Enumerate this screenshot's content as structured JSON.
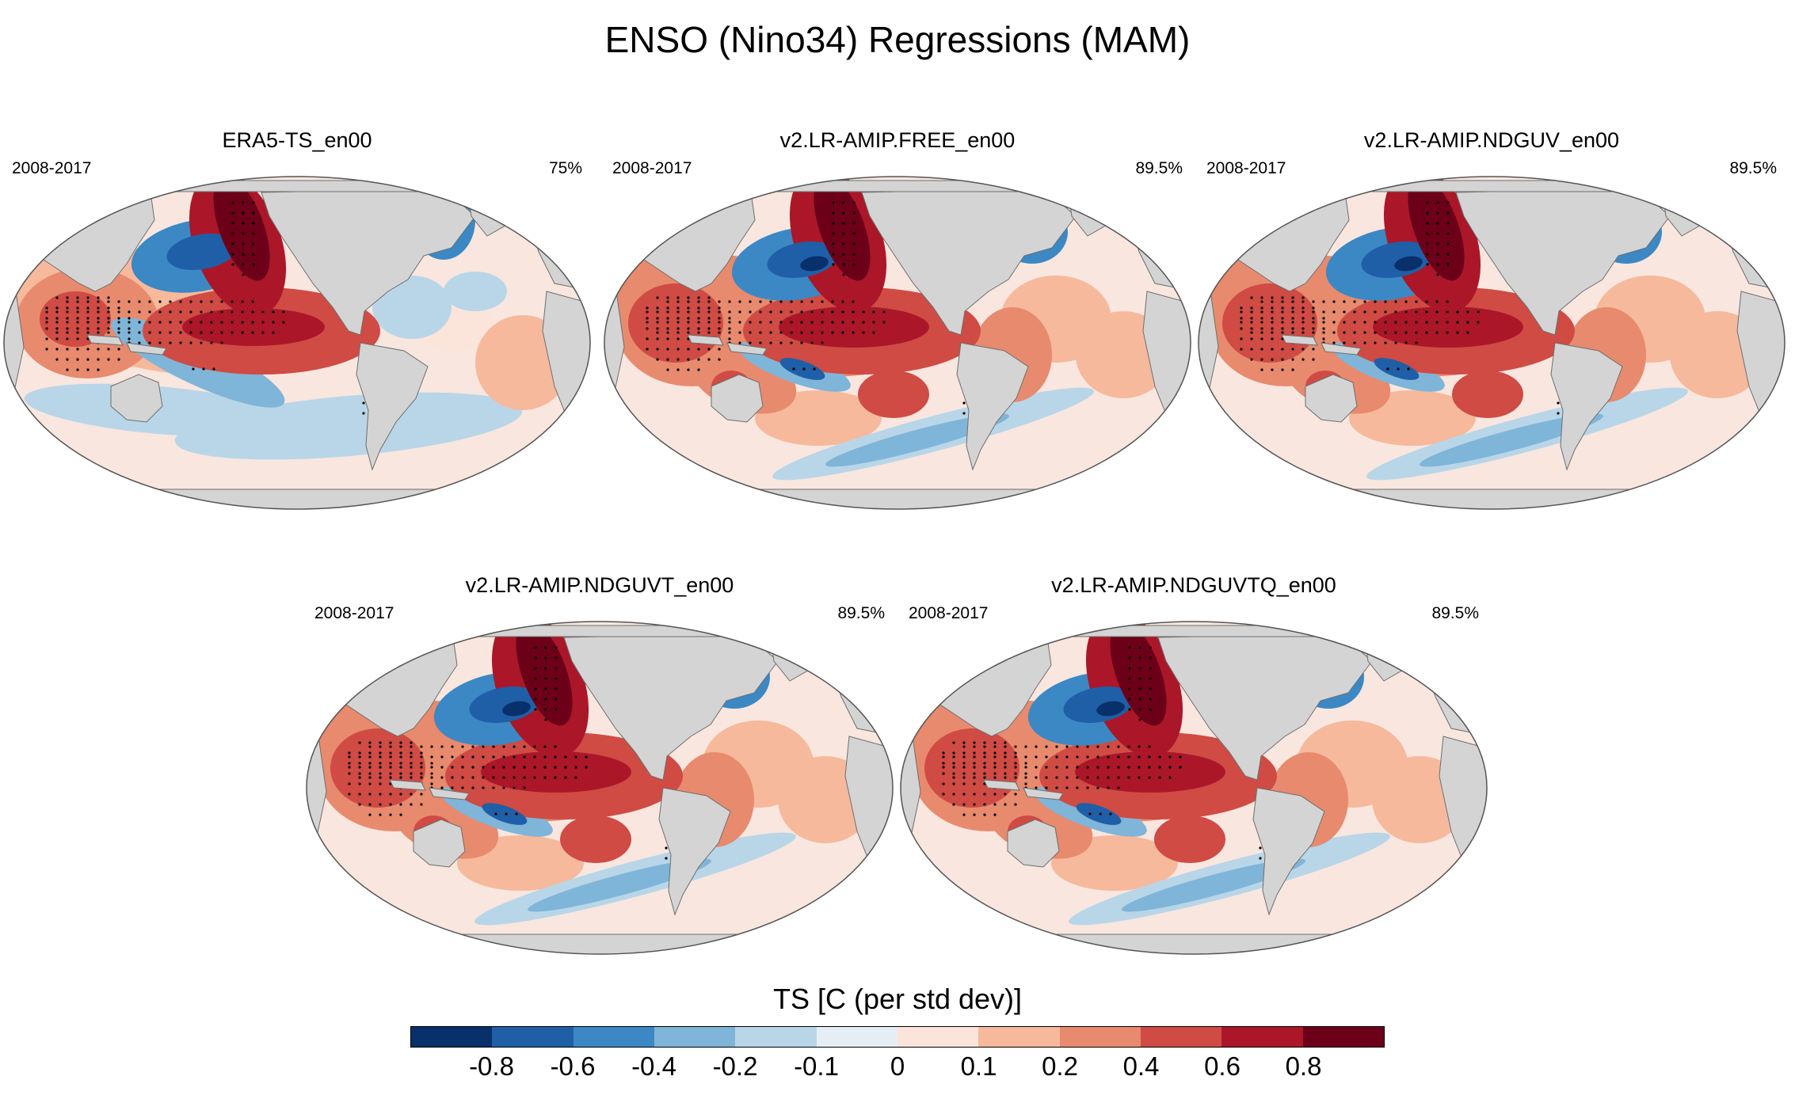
{
  "title": "ENSO (Nino34) Regressions (MAM)",
  "panels": [
    {
      "title": "ERA5-TS_en00",
      "period": "2008-2017",
      "corr": "75%"
    },
    {
      "title": "v2.LR-AMIP.FREE_en00",
      "period": "2008-2017",
      "corr": "89.5%"
    },
    {
      "title": "v2.LR-AMIP.NDGUV_en00",
      "period": "2008-2017",
      "corr": "89.5%"
    },
    {
      "title": "v2.LR-AMIP.NDGUVT_en00",
      "period": "2008-2017",
      "corr": "89.5%"
    },
    {
      "title": "v2.LR-AMIP.NDGUVTQ_en00",
      "period": "2008-2017",
      "corr": "89.5%"
    }
  ],
  "colorbar": {
    "title": "TS [C (per std dev)]",
    "colors": [
      "#08306b",
      "#1f5fa8",
      "#3b88c4",
      "#7fb5d8",
      "#b8d6e8",
      "#e6eef5",
      "#fbe4da",
      "#f6b99c",
      "#e88a6e",
      "#cf4b44",
      "#ab1728",
      "#6d0019"
    ],
    "tick_labels": [
      "-0.8",
      "-0.6",
      "-0.4",
      "-0.2",
      "-0.1",
      "0",
      "0.1",
      "0.2",
      "0.4",
      "0.6",
      "0.8"
    ]
  },
  "palette": {
    "land": "#d4d4d4",
    "coast": "#6e6e6e",
    "ocean_neutral": "#f8e6df"
  }
}
